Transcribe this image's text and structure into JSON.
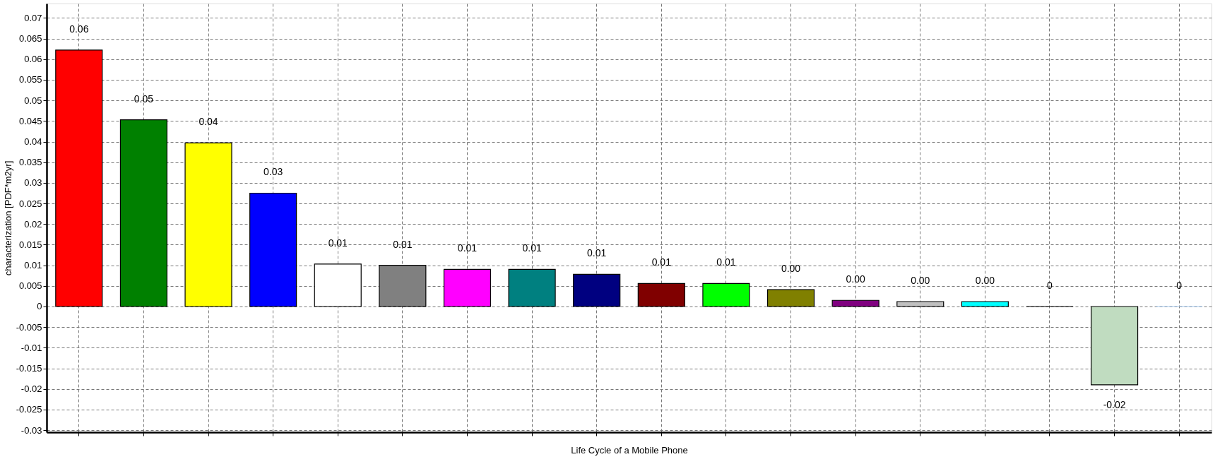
{
  "chart_data": {
    "type": "bar",
    "xlabel": "Life Cycle of a Mobile Phone",
    "ylabel": "characterization [PDF*m2yr]",
    "categories": [
      null,
      null,
      null,
      null,
      null,
      null,
      null,
      null,
      null,
      null,
      null,
      null,
      null,
      null,
      null,
      null,
      null,
      null
    ],
    "values": [
      0.0622,
      0.0453,
      0.0397,
      0.0275,
      0.0103,
      0.01,
      0.009,
      0.009,
      0.0078,
      0.0056,
      0.0056,
      0.0041,
      0.0015,
      0.0012,
      0.0012,
      0,
      -0.019,
      0
    ],
    "colors": [
      "#ff0000",
      "#008000",
      "#ffff00",
      "#0000ff",
      "#ffffff",
      "#808080",
      "#ff00ff",
      "#008080",
      "#000080",
      "#800000",
      "#00ff00",
      "#808000",
      "#800080",
      "#c0c0c0",
      "#00ffff",
      "#000000",
      "#c0dcc0",
      "#a6caf0"
    ],
    "value_labels": [
      "0.06",
      "0.05",
      "0.04",
      "0.03",
      "0.01",
      "0.01",
      "0.01",
      "0.01",
      "0.01",
      "0.01",
      "0.01",
      "0.00",
      "0.00",
      "0.00",
      "0.00",
      "0",
      "-0.02",
      "0"
    ],
    "ylim": [
      -0.0305,
      0.0735
    ],
    "yticks": [
      -0.03,
      -0.025,
      -0.02,
      -0.015,
      -0.01,
      -0.005,
      0,
      0.005,
      0.01,
      0.015,
      0.02,
      0.025,
      0.03,
      0.035,
      0.04,
      0.045,
      0.05,
      0.055,
      0.06,
      0.065,
      0.07
    ],
    "grid": true,
    "legend": false,
    "tick_labels": "y"
  }
}
